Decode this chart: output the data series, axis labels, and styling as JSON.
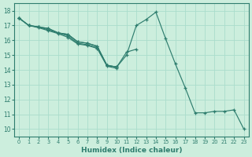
{
  "xlabel": "Humidex (Indice chaleur)",
  "bg_color": "#cceedd",
  "grid_color": "#aaddcc",
  "line_color": "#2e7d6e",
  "xlim": [
    -0.5,
    23.5
  ],
  "ylim": [
    9.5,
    18.5
  ],
  "xticks": [
    0,
    1,
    2,
    3,
    4,
    5,
    6,
    7,
    8,
    9,
    10,
    11,
    12,
    13,
    14,
    15,
    16,
    17,
    18,
    19,
    20,
    21,
    22,
    23
  ],
  "yticks": [
    10,
    11,
    12,
    13,
    14,
    15,
    16,
    17,
    18
  ],
  "series": [
    {
      "x": [
        0,
        1,
        2,
        3,
        4,
        5,
        6,
        7,
        8,
        9,
        10,
        11,
        12,
        13,
        14,
        15,
        16,
        17,
        18,
        19,
        20,
        21,
        22,
        23
      ],
      "y": [
        17.5,
        17.0,
        16.9,
        16.8,
        16.5,
        16.4,
        15.9,
        15.8,
        15.6,
        14.3,
        14.2,
        15.0,
        17.0,
        17.4,
        17.9,
        16.1,
        14.4,
        12.8,
        11.1,
        11.1,
        11.2,
        11.2,
        11.3,
        10.0
      ]
    },
    {
      "x": [
        0,
        1,
        2,
        3,
        4,
        5,
        6,
        7,
        8,
        9,
        10,
        11,
        12
      ],
      "y": [
        17.5,
        17.0,
        16.9,
        16.8,
        16.5,
        16.4,
        15.9,
        15.8,
        15.6,
        14.3,
        14.2,
        15.2,
        15.4
      ]
    },
    {
      "x": [
        0,
        1,
        2,
        3,
        4,
        5,
        6,
        7,
        8,
        9,
        10
      ],
      "y": [
        17.5,
        17.0,
        16.9,
        16.7,
        16.5,
        16.3,
        15.8,
        15.7,
        15.5,
        14.3,
        14.2
      ]
    },
    {
      "x": [
        0,
        1,
        2,
        3,
        4,
        5,
        6,
        7,
        8,
        9,
        10
      ],
      "y": [
        17.5,
        17.0,
        16.85,
        16.65,
        16.45,
        16.2,
        15.75,
        15.65,
        15.45,
        14.25,
        14.1
      ]
    }
  ]
}
